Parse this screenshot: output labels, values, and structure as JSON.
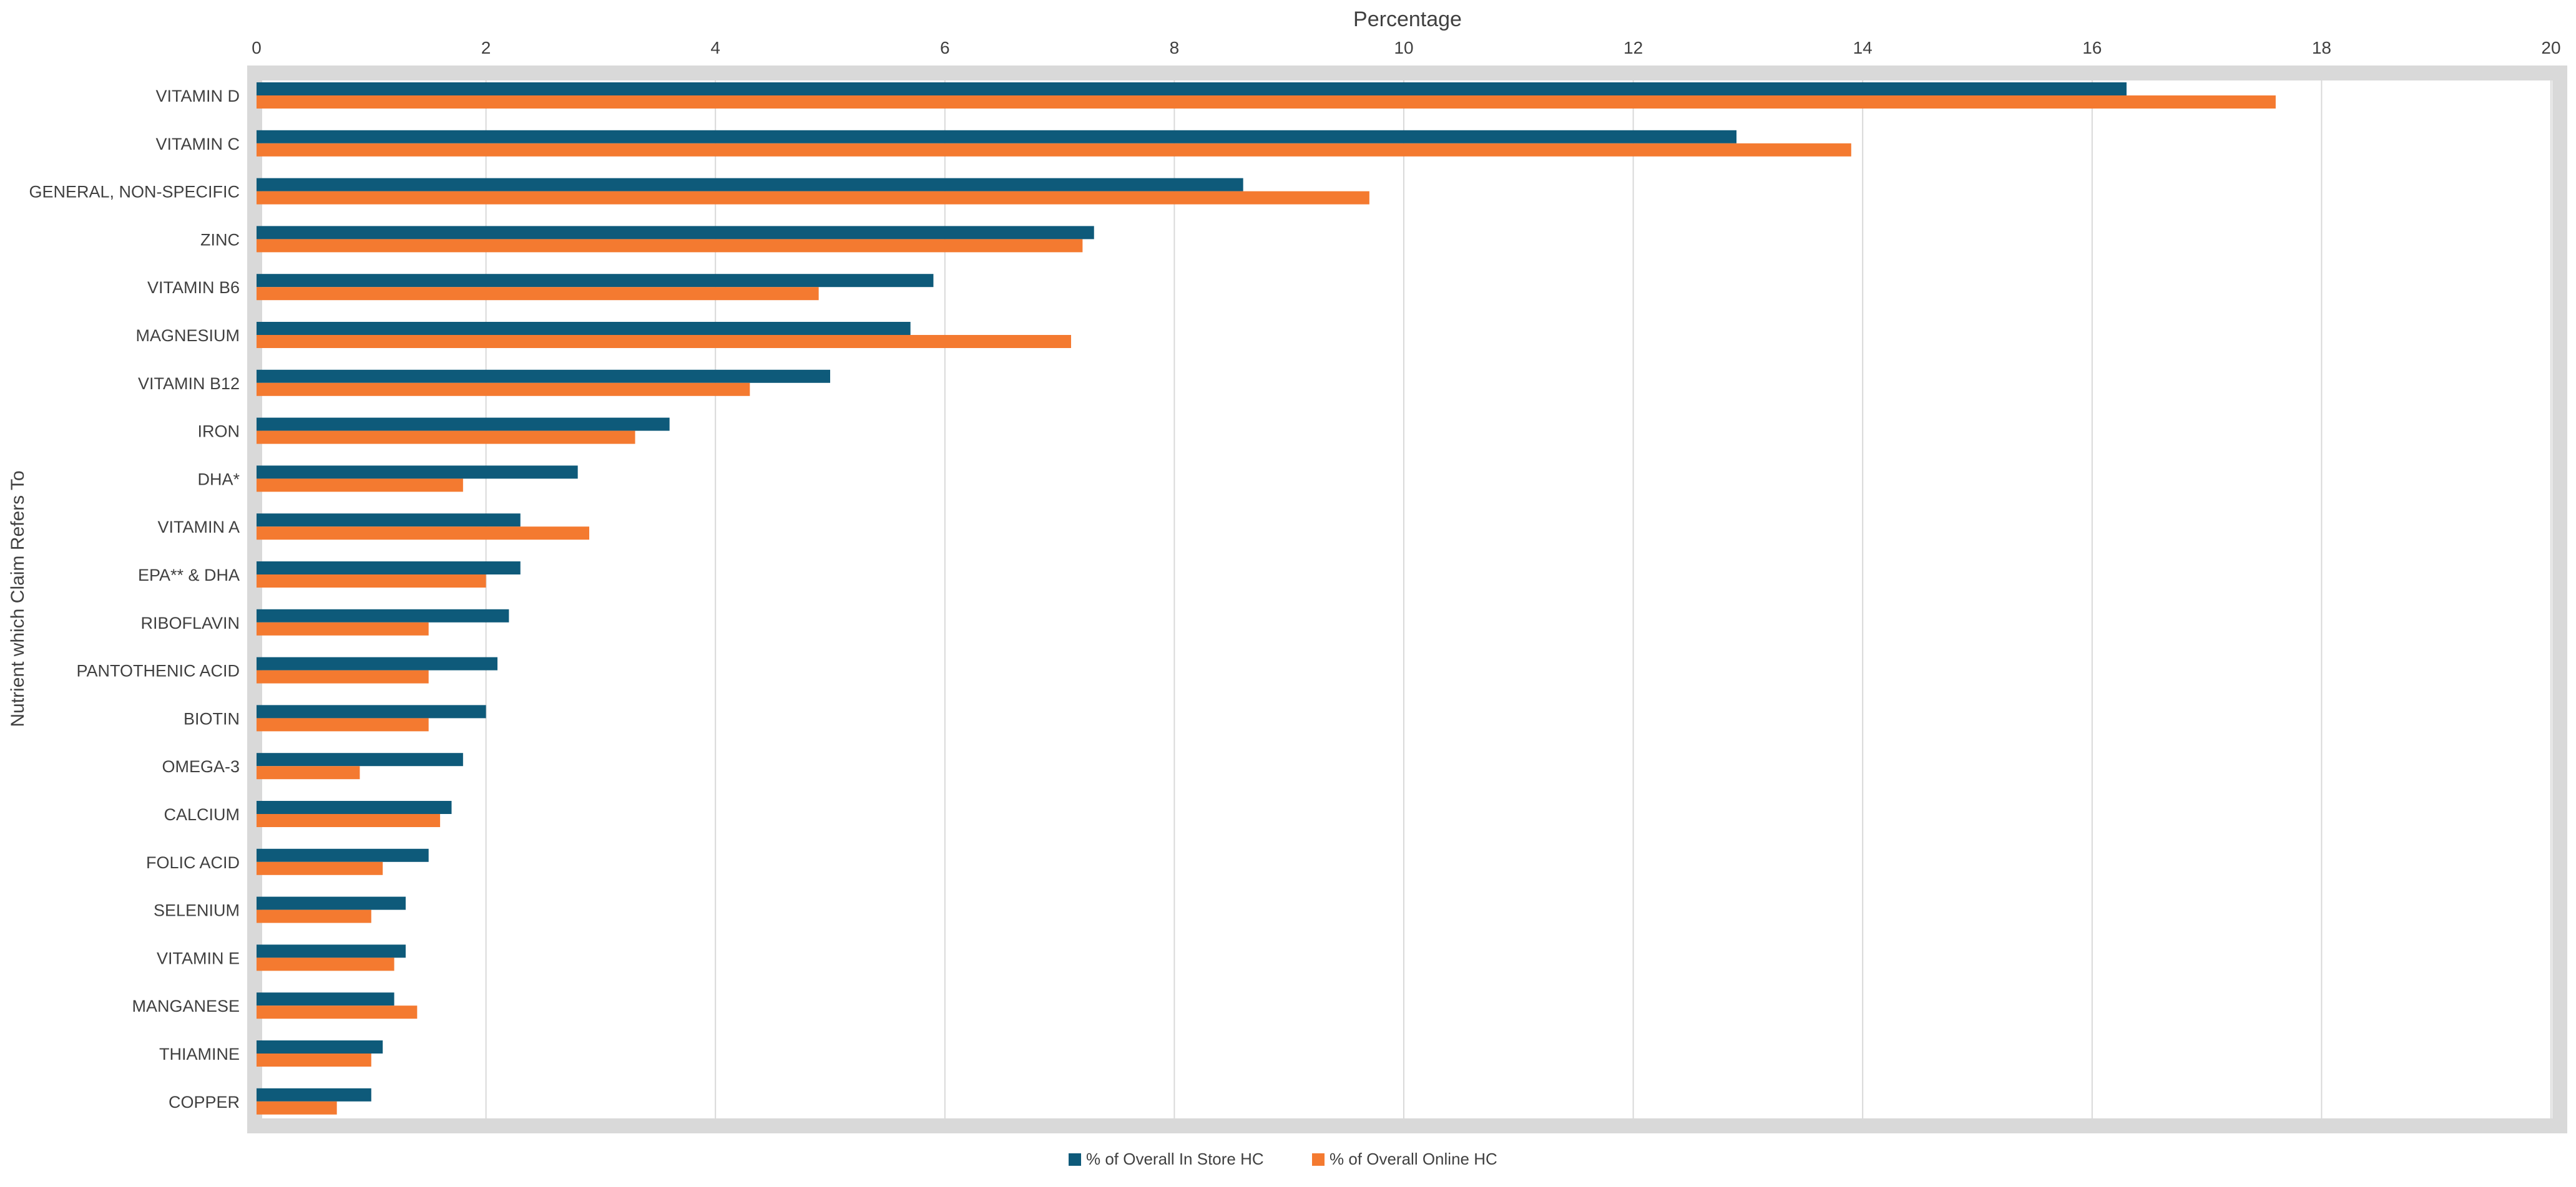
{
  "chart_data": {
    "type": "bar",
    "orientation": "horizontal",
    "xlabel": "Percentage",
    "ylabel": "Nutrient which Claim Refers To",
    "xlim": [
      0,
      20
    ],
    "x_ticks": [
      "0",
      "2",
      "4",
      "6",
      "8",
      "10",
      "12",
      "14",
      "16",
      "18",
      "20"
    ],
    "x_axis_position": "top",
    "grid": true,
    "legend_position": "bottom-center",
    "categories": [
      "VITAMIN D",
      "VITAMIN C",
      "GENERAL, NON-SPECIFIC",
      "ZINC",
      "VITAMIN B6",
      "MAGNESIUM",
      "VITAMIN B12",
      "IRON",
      "DHA*",
      "VITAMIN A",
      "EPA** & DHA",
      "RIBOFLAVIN",
      "PANTOTHENIC ACID",
      "BIOTIN",
      "OMEGA-3",
      "CALCIUM",
      "FOLIC ACID",
      "SELENIUM",
      "VITAMIN E",
      "MANGANESE",
      "THIAMINE",
      "COPPER"
    ],
    "series": [
      {
        "name": "% of Overall In Store HC",
        "color": "#0e5a7a",
        "values": [
          16.3,
          12.9,
          8.6,
          7.3,
          5.9,
          5.7,
          5.0,
          3.6,
          2.8,
          2.3,
          2.3,
          2.2,
          2.1,
          2.0,
          1.8,
          1.7,
          1.5,
          1.3,
          1.3,
          1.2,
          1.1,
          1.0
        ]
      },
      {
        "name": "% of Overall Online HC",
        "color": "#f47a30",
        "values": [
          17.6,
          13.9,
          9.7,
          7.2,
          4.9,
          7.1,
          4.3,
          3.3,
          1.8,
          2.9,
          2.0,
          1.5,
          1.5,
          1.5,
          0.9,
          1.6,
          1.1,
          1.0,
          1.2,
          1.4,
          1.0,
          0.7
        ]
      }
    ]
  }
}
